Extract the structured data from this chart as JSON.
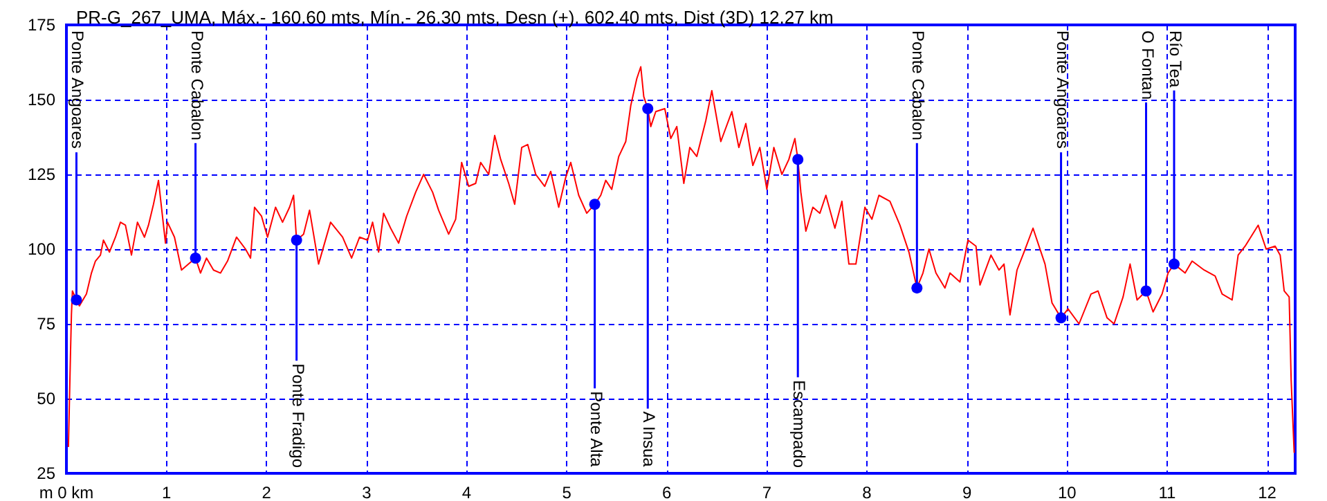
{
  "chart_data": {
    "type": "line",
    "title": "PR-G_267_UMA, Máx.- 160.60 mts, Mín.- 26.30 mts, Desn (+). 602.40 mts, Dist (3D) 12.27 km",
    "x": [
      0.02,
      0.04,
      0.05,
      0.06,
      0.1,
      0.13,
      0.2,
      0.25,
      0.29,
      0.34,
      0.37,
      0.43,
      0.49,
      0.54,
      0.59,
      0.65,
      0.71,
      0.78,
      0.82,
      0.87,
      0.92,
      0.99,
      1.01,
      1.08,
      1.15,
      1.22,
      1.29,
      1.34,
      1.4,
      1.47,
      1.54,
      1.61,
      1.7,
      1.79,
      1.84,
      1.88,
      1.95,
      2.01,
      2.09,
      2.16,
      2.23,
      2.27,
      2.3,
      2.37,
      2.43,
      2.52,
      2.64,
      2.76,
      2.85,
      2.93,
      3.01,
      3.06,
      3.12,
      3.17,
      3.24,
      3.32,
      3.4,
      3.49,
      3.57,
      3.66,
      3.72,
      3.82,
      3.89,
      3.95,
      4.02,
      4.09,
      4.14,
      4.22,
      4.28,
      4.34,
      4.42,
      4.48,
      4.55,
      4.61,
      4.69,
      4.78,
      4.84,
      4.92,
      4.99,
      5.04,
      5.12,
      5.2,
      5.28,
      5.34,
      5.39,
      5.45,
      5.52,
      5.59,
      5.64,
      5.7,
      5.74,
      5.77,
      5.81,
      5.84,
      5.89,
      5.98,
      6.04,
      6.1,
      6.17,
      6.23,
      6.3,
      6.39,
      6.45,
      6.54,
      6.65,
      6.72,
      6.79,
      6.86,
      6.93,
      7.0,
      7.07,
      7.15,
      7.22,
      7.28,
      7.31,
      7.34,
      7.39,
      7.46,
      7.53,
      7.59,
      7.68,
      7.75,
      7.82,
      7.89,
      7.98,
      8.05,
      8.12,
      8.23,
      8.33,
      8.42,
      8.5,
      8.56,
      8.62,
      8.69,
      8.78,
      8.83,
      8.93,
      9.01,
      9.09,
      9.13,
      9.24,
      9.32,
      9.37,
      9.43,
      9.5,
      9.57,
      9.66,
      9.78,
      9.85,
      9.94,
      10.01,
      10.12,
      10.24,
      10.31,
      10.4,
      10.47,
      10.56,
      10.63,
      10.7,
      10.79,
      10.86,
      10.95,
      11.01,
      11.07,
      11.18,
      11.25,
      11.37,
      11.48,
      11.55,
      11.65,
      11.71,
      11.78,
      11.91,
      11.99,
      12.08,
      12.13,
      12.17,
      12.22,
      12.24,
      12.27
    ],
    "series": [
      {
        "color": "#ff0000",
        "values": [
          34,
          64,
          78,
          86,
          83,
          81,
          85,
          92,
          96,
          98,
          103,
          99,
          104,
          109,
          108,
          98,
          109,
          104,
          108,
          115,
          123,
          102,
          109,
          104,
          93,
          95,
          97,
          92,
          97,
          93,
          92,
          96,
          104,
          100,
          97,
          114,
          111,
          104,
          114,
          109,
          114,
          118,
          103,
          105,
          113,
          95,
          109,
          104,
          97,
          104,
          103,
          109,
          99,
          112,
          107,
          102,
          111,
          119,
          125,
          119,
          113,
          105,
          110,
          129,
          121,
          122,
          129,
          125,
          138,
          130,
          122,
          115,
          134,
          135,
          125,
          121,
          126,
          114,
          124,
          129,
          118,
          112,
          115,
          118,
          123,
          120,
          131,
          136,
          148,
          157,
          161,
          151,
          147,
          141,
          146,
          147,
          137,
          141,
          122,
          134,
          131,
          143,
          153,
          136,
          146,
          134,
          142,
          128,
          134,
          120,
          134,
          125,
          130,
          137,
          130,
          119,
          106,
          114,
          112,
          118,
          107,
          116,
          95,
          95,
          114,
          110,
          118,
          116,
          108,
          99,
          87,
          92,
          100,
          92,
          87,
          92,
          89,
          103,
          101,
          88,
          98,
          93,
          95,
          78,
          93,
          99,
          107,
          95,
          82,
          77,
          80,
          75,
          85,
          86,
          77,
          75,
          84,
          95,
          83,
          86,
          79,
          85,
          92,
          95,
          92,
          96,
          93,
          91,
          85,
          83,
          98,
          101,
          108,
          100,
          101,
          98,
          86,
          84,
          56,
          32
        ]
      }
    ],
    "xlim": [
      0,
      12.28
    ],
    "xticks": [
      {
        "value": 0,
        "label": "m 0 km"
      },
      1,
      2,
      3,
      4,
      5,
      6,
      7,
      8,
      9,
      10,
      11,
      12
    ],
    "ylim": [
      25,
      175
    ],
    "yticks": [
      25,
      50,
      75,
      100,
      125,
      150,
      175
    ],
    "grid": true,
    "marker": "none",
    "line_style": "solid",
    "annotations": [
      {
        "text": "Ponte Angoares",
        "x": 0.1,
        "y": 83
      },
      {
        "text": "Ponte Cabalon",
        "x": 1.29,
        "y": 97
      },
      {
        "text": "Ponte Fradigo",
        "x": 2.3,
        "y": 103
      },
      {
        "text": "Ponte Alta",
        "x": 5.28,
        "y": 115
      },
      {
        "text": "A Insua",
        "x": 5.81,
        "y": 147
      },
      {
        "text": "Escampado",
        "x": 7.31,
        "y": 130
      },
      {
        "text": "Ponte Cabalon",
        "x": 8.5,
        "y": 87
      },
      {
        "text": "Ponte Angoares",
        "x": 9.94,
        "y": 77
      },
      {
        "text": "O Fontan",
        "x": 10.79,
        "y": 86
      },
      {
        "text": "Río Tea",
        "x": 11.07,
        "y": 95
      }
    ]
  }
}
